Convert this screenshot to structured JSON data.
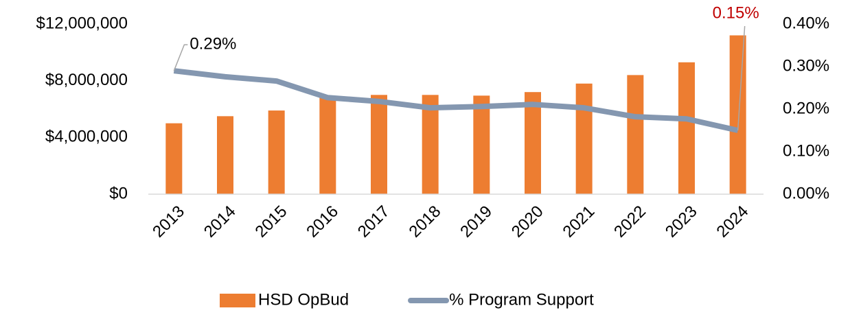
{
  "chart_data": {
    "type": "bar_line",
    "categories": [
      "2013",
      "2014",
      "2015",
      "2016",
      "2017",
      "2018",
      "2019",
      "2020",
      "2021",
      "2022",
      "2023",
      "2024"
    ],
    "series": [
      {
        "name": "HSD OpBud",
        "color": "#ed7d31",
        "type": "bar",
        "values": [
          5000000,
          5500000,
          5900000,
          6800000,
          7000000,
          7000000,
          6950000,
          7200000,
          7800000,
          8400000,
          9300000,
          11200000
        ]
      },
      {
        "name": "% Program Support",
        "color": "#8497b0",
        "type": "line",
        "axis": "y2",
        "values": [
          0.29,
          0.276,
          0.266,
          0.227,
          0.218,
          0.203,
          0.206,
          0.211,
          0.203,
          0.182,
          0.177,
          0.15
        ],
        "value_labels": [
          "0.29%",
          null,
          null,
          null,
          null,
          null,
          null,
          null,
          null,
          null,
          null,
          "0.15%"
        ]
      }
    ],
    "ylim": [
      0,
      12000000
    ],
    "yticks": [
      {
        "value": 0,
        "label": "$0"
      },
      {
        "value": 4000000,
        "label": "$4,000,000"
      },
      {
        "value": 8000000,
        "label": "$8,000,000"
      },
      {
        "value": 12000000,
        "label": "$12,000,000"
      }
    ],
    "y2lim": [
      0,
      0.4
    ],
    "y2ticks": [
      {
        "value": 0,
        "label": "0.00%"
      },
      {
        "value": 0.1,
        "label": "0.10%"
      },
      {
        "value": 0.2,
        "label": "0.20%"
      },
      {
        "value": 0.3,
        "label": "0.30%"
      },
      {
        "value": 0.4,
        "label": "0.40%"
      }
    ],
    "legend": "bottom"
  }
}
